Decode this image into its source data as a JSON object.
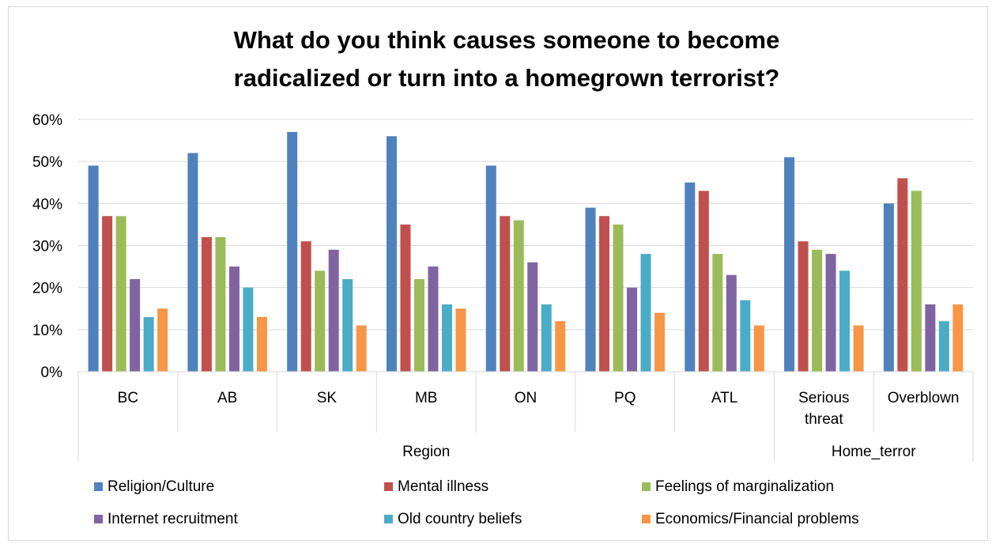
{
  "chart_data": {
    "type": "bar",
    "title_lines": [
      "What do you think causes someone to become",
      "radicalized or turn into a homegrown terrorist?"
    ],
    "categories": [
      [
        "BC"
      ],
      [
        "AB"
      ],
      [
        "SK"
      ],
      [
        "MB"
      ],
      [
        "ON"
      ],
      [
        "PQ"
      ],
      [
        "ATL"
      ],
      [
        "Serious",
        "threat"
      ],
      [
        "Overblown"
      ]
    ],
    "groups": [
      {
        "label": "Region",
        "start": 0,
        "end": 6
      },
      {
        "label": "Home_terror",
        "start": 7,
        "end": 8
      }
    ],
    "series": [
      {
        "name": "Religion/Culture",
        "color": "#4f81bd",
        "values": [
          49,
          52,
          57,
          56,
          49,
          39,
          45,
          51,
          40
        ]
      },
      {
        "name": "Mental illness",
        "color": "#c0504d",
        "values": [
          37,
          32,
          31,
          35,
          37,
          37,
          43,
          31,
          46
        ]
      },
      {
        "name": "Feelings of marginalization",
        "color": "#9bbb59",
        "values": [
          37,
          32,
          24,
          22,
          36,
          35,
          28,
          29,
          43
        ]
      },
      {
        "name": "Internet recruitment",
        "color": "#8064a2",
        "values": [
          22,
          25,
          29,
          25,
          26,
          20,
          23,
          28,
          16
        ]
      },
      {
        "name": "Old country beliefs",
        "color": "#4bacc6",
        "values": [
          13,
          20,
          22,
          16,
          16,
          28,
          17,
          24,
          12
        ]
      },
      {
        "name": "Economics/Financial problems",
        "color": "#f79646",
        "values": [
          15,
          13,
          11,
          15,
          12,
          14,
          11,
          11,
          16
        ]
      }
    ],
    "y_ticks": [
      "0%",
      "10%",
      "20%",
      "30%",
      "40%",
      "50%",
      "60%"
    ],
    "ylim": [
      0,
      60
    ],
    "grid": true,
    "legend_position": "bottom"
  }
}
